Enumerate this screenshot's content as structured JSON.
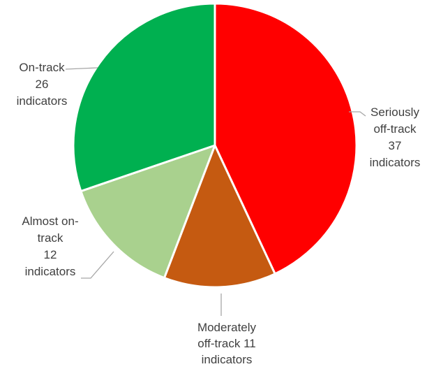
{
  "chart_data": {
    "type": "pie",
    "start_angle_deg": 0,
    "direction": "clockwise",
    "slices": [
      {
        "label_lines": [
          "Seriously",
          "off-track",
          "37",
          "indicators"
        ],
        "value": 37,
        "color": "#ff0000"
      },
      {
        "label_lines": [
          "Moderately",
          "off-track 11",
          "indicators"
        ],
        "value": 11,
        "color": "#c55a11"
      },
      {
        "label_lines": [
          "Almost on-",
          "track",
          "12",
          "indicators"
        ],
        "value": 12,
        "color": "#a9d18e"
      },
      {
        "label_lines": [
          "On-track",
          "26",
          "indicators"
        ],
        "value": 26,
        "color": "#00b050"
      }
    ]
  }
}
